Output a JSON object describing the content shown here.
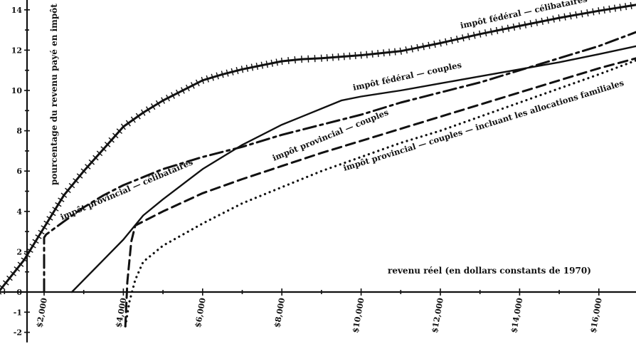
{
  "chart_data": {
    "type": "line",
    "title": "",
    "xlabel": "revenu réel (en dollars constants de 1970)",
    "ylabel": "pourcentage du revenu payé en impôt",
    "xlim": [
      850,
      17000
    ],
    "ylim": [
      -2.5,
      14.5
    ],
    "grid": false,
    "x_ticks": [
      {
        "value": 2000,
        "label": "$2,000"
      },
      {
        "value": 4000,
        "label": "$4,000"
      },
      {
        "value": 6000,
        "label": "$6,000"
      },
      {
        "value": 8000,
        "label": "$8,000"
      },
      {
        "value": 10000,
        "label": "$10,000"
      },
      {
        "value": 12000,
        "label": "$12,000"
      },
      {
        "value": 14000,
        "label": "$14,000"
      },
      {
        "value": 16000,
        "label": "$16,000"
      }
    ],
    "y_ticks": [
      {
        "value": -2,
        "label": "-2"
      },
      {
        "value": -1,
        "label": "-1"
      },
      {
        "value": 0,
        "label": "0"
      },
      {
        "value": 2,
        "label": "2"
      },
      {
        "value": 4,
        "label": "4"
      },
      {
        "value": 6,
        "label": "6"
      },
      {
        "value": 8,
        "label": "8"
      },
      {
        "value": 10,
        "label": "10"
      },
      {
        "value": 12,
        "label": "12"
      },
      {
        "value": 14,
        "label": "14"
      }
    ],
    "series": [
      {
        "name": "impôt fédéral — célibataires",
        "style": "cross-hatched",
        "x": [
          850,
          1500,
          2000,
          2500,
          3000,
          3500,
          4000,
          4500,
          5000,
          5500,
          6000,
          6500,
          7000,
          7500,
          8000,
          8500,
          9000,
          10000,
          11000,
          12000,
          13000,
          14000,
          15000,
          16000,
          16950
        ],
        "y": [
          0,
          1.6,
          3.2,
          4.8,
          6.0,
          7.1,
          8.2,
          8.9,
          9.5,
          10.0,
          10.5,
          10.8,
          11.05,
          11.25,
          11.45,
          11.55,
          11.6,
          11.75,
          11.95,
          12.35,
          12.8,
          13.2,
          13.6,
          13.95,
          14.25
        ]
      },
      {
        "name": "impôt fédéral — couples",
        "style": "solid",
        "x": [
          2700,
          3500,
          4000,
          4500,
          5000,
          6000,
          7000,
          8000,
          8500,
          9000,
          9500,
          10000,
          11000,
          12000,
          13000,
          14000,
          15000,
          16000,
          16950
        ],
        "y": [
          0,
          1.6,
          2.6,
          3.8,
          4.6,
          6.1,
          7.3,
          8.3,
          8.7,
          9.1,
          9.5,
          9.7,
          10.0,
          10.35,
          10.7,
          11.05,
          11.4,
          11.8,
          12.2
        ]
      },
      {
        "name": "impôt provincial — célibataires",
        "style": "dash-dot",
        "x": [
          2000,
          2000,
          2050,
          2500,
          3000,
          3500,
          4000,
          4500,
          5000,
          6000,
          7000,
          8000,
          9000,
          10000,
          11000,
          12000,
          13000,
          14000,
          15000,
          16000,
          16950
        ],
        "y": [
          0,
          2.7,
          2.85,
          3.5,
          4.2,
          4.8,
          5.3,
          5.7,
          6.1,
          6.7,
          7.2,
          7.8,
          8.3,
          8.8,
          9.4,
          9.9,
          10.4,
          11.0,
          11.6,
          12.2,
          12.9
        ]
      },
      {
        "name": "impôt provincial — couples",
        "style": "dashed",
        "x": [
          4050,
          4100,
          4200,
          4300,
          5000,
          6000,
          7000,
          8000,
          9000,
          10000,
          11000,
          12000,
          13000,
          14000,
          15000,
          16000,
          16950
        ],
        "y": [
          -1.7,
          0.5,
          2.5,
          3.3,
          4.0,
          4.9,
          5.6,
          6.25,
          6.9,
          7.5,
          8.1,
          8.7,
          9.3,
          9.9,
          10.5,
          11.1,
          11.6
        ]
      },
      {
        "name": "impôt provincial — couples — incluant les allocations familiales",
        "style": "dotted",
        "x": [
          4050,
          4150,
          4300,
          4500,
          5000,
          6000,
          7000,
          8000,
          9000,
          10000,
          11000,
          12000,
          13000,
          14000,
          15000,
          16000,
          16950
        ],
        "y": [
          -1.7,
          -0.5,
          0.6,
          1.5,
          2.3,
          3.4,
          4.4,
          5.2,
          6.0,
          6.7,
          7.4,
          8.0,
          8.7,
          9.4,
          10.1,
          10.8,
          11.5
        ]
      }
    ],
    "series_labels": [
      {
        "text": "impôt fédéral — célibataires",
        "series": 0
      },
      {
        "text": "impôt fédéral — couples",
        "series": 1
      },
      {
        "text": "impôt provincial — célibataires",
        "series": 2
      },
      {
        "text": "impôt provincial — couples",
        "series": 3
      },
      {
        "text": "impôt provincial — couples — incluant les allocations familiales",
        "series": 4
      }
    ]
  }
}
